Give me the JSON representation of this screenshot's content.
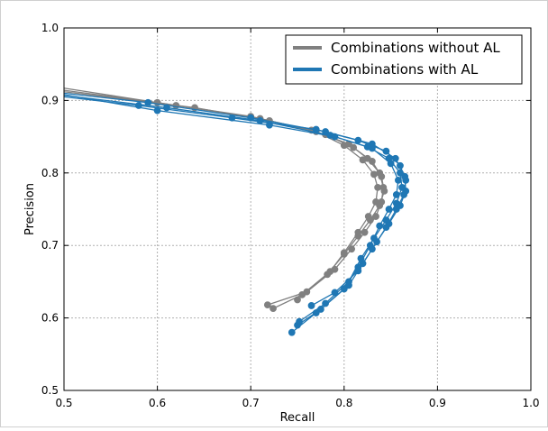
{
  "chart_data": {
    "type": "line",
    "title": "",
    "xlabel": "Recall",
    "ylabel": "Precision",
    "xlim": [
      0.5,
      1.0
    ],
    "ylim": [
      0.5,
      1.0
    ],
    "xticks": [
      "0.5",
      "0.6",
      "0.7",
      "0.8",
      "0.9",
      "1.0"
    ],
    "yticks": [
      "0.5",
      "0.6",
      "0.7",
      "0.8",
      "0.9",
      "1.0"
    ],
    "grid": true,
    "legend_position": "top-right",
    "legend": [
      {
        "name": "Combinations without AL",
        "color": "#808080"
      },
      {
        "name": "Combinations with AL",
        "color": "#1f77b4"
      }
    ],
    "series": [
      {
        "group": 0,
        "points": [
          [
            0.5,
            0.917
          ],
          [
            0.62,
            0.893
          ],
          [
            0.71,
            0.875
          ],
          [
            0.77,
            0.857
          ],
          [
            0.8,
            0.838
          ],
          [
            0.82,
            0.818
          ],
          [
            0.832,
            0.798
          ],
          [
            0.836,
            0.78
          ],
          [
            0.834,
            0.76
          ],
          [
            0.826,
            0.74
          ],
          [
            0.815,
            0.718
          ],
          [
            0.8,
            0.69
          ],
          [
            0.785,
            0.664
          ],
          [
            0.755,
            0.632
          ],
          [
            0.724,
            0.613
          ]
        ]
      },
      {
        "group": 0,
        "points": [
          [
            0.5,
            0.914
          ],
          [
            0.6,
            0.897
          ],
          [
            0.7,
            0.878
          ],
          [
            0.765,
            0.859
          ],
          [
            0.805,
            0.84
          ],
          [
            0.825,
            0.82
          ],
          [
            0.838,
            0.8
          ],
          [
            0.842,
            0.78
          ],
          [
            0.84,
            0.76
          ],
          [
            0.834,
            0.74
          ],
          [
            0.822,
            0.718
          ],
          [
            0.808,
            0.695
          ],
          [
            0.79,
            0.667
          ],
          [
            0.76,
            0.636
          ],
          [
            0.718,
            0.618
          ]
        ]
      },
      {
        "group": 0,
        "points": [
          [
            0.5,
            0.912
          ],
          [
            0.64,
            0.89
          ],
          [
            0.72,
            0.872
          ],
          [
            0.78,
            0.853
          ],
          [
            0.81,
            0.835
          ],
          [
            0.83,
            0.816
          ],
          [
            0.84,
            0.795
          ],
          [
            0.843,
            0.775
          ],
          [
            0.838,
            0.755
          ],
          [
            0.828,
            0.735
          ],
          [
            0.815,
            0.713
          ],
          [
            0.8,
            0.688
          ],
          [
            0.782,
            0.66
          ],
          [
            0.75,
            0.625
          ]
        ]
      },
      {
        "group": 1,
        "points": [
          [
            0.5,
            0.91
          ],
          [
            0.59,
            0.897
          ],
          [
            0.7,
            0.876
          ],
          [
            0.78,
            0.857
          ],
          [
            0.83,
            0.84
          ],
          [
            0.855,
            0.82
          ],
          [
            0.865,
            0.795
          ],
          [
            0.866,
            0.775
          ],
          [
            0.86,
            0.755
          ],
          [
            0.848,
            0.73
          ],
          [
            0.835,
            0.705
          ],
          [
            0.82,
            0.675
          ],
          [
            0.805,
            0.645
          ],
          [
            0.775,
            0.612
          ],
          [
            0.75,
            0.59
          ]
        ]
      },
      {
        "group": 1,
        "points": [
          [
            0.5,
            0.907
          ],
          [
            0.61,
            0.89
          ],
          [
            0.71,
            0.872
          ],
          [
            0.785,
            0.852
          ],
          [
            0.83,
            0.834
          ],
          [
            0.85,
            0.813
          ],
          [
            0.858,
            0.79
          ],
          [
            0.856,
            0.77
          ],
          [
            0.848,
            0.75
          ],
          [
            0.838,
            0.727
          ],
          [
            0.828,
            0.7
          ],
          [
            0.815,
            0.67
          ],
          [
            0.8,
            0.64
          ],
          [
            0.77,
            0.607
          ],
          [
            0.744,
            0.58
          ]
        ]
      },
      {
        "group": 1,
        "points": [
          [
            0.5,
            0.905
          ],
          [
            0.58,
            0.893
          ],
          [
            0.68,
            0.876
          ],
          [
            0.77,
            0.86
          ],
          [
            0.815,
            0.845
          ],
          [
            0.845,
            0.83
          ],
          [
            0.86,
            0.81
          ],
          [
            0.866,
            0.79
          ],
          [
            0.864,
            0.77
          ],
          [
            0.856,
            0.75
          ],
          [
            0.845,
            0.725
          ],
          [
            0.83,
            0.695
          ],
          [
            0.815,
            0.665
          ],
          [
            0.79,
            0.635
          ],
          [
            0.765,
            0.617
          ]
        ]
      },
      {
        "group": 1,
        "points": [
          [
            0.5,
            0.908
          ],
          [
            0.6,
            0.886
          ],
          [
            0.72,
            0.866
          ],
          [
            0.79,
            0.85
          ],
          [
            0.825,
            0.836
          ],
          [
            0.848,
            0.82
          ],
          [
            0.86,
            0.8
          ],
          [
            0.862,
            0.78
          ],
          [
            0.856,
            0.758
          ],
          [
            0.845,
            0.735
          ],
          [
            0.832,
            0.71
          ],
          [
            0.818,
            0.682
          ],
          [
            0.805,
            0.65
          ],
          [
            0.78,
            0.62
          ],
          [
            0.752,
            0.595
          ]
        ]
      }
    ]
  }
}
